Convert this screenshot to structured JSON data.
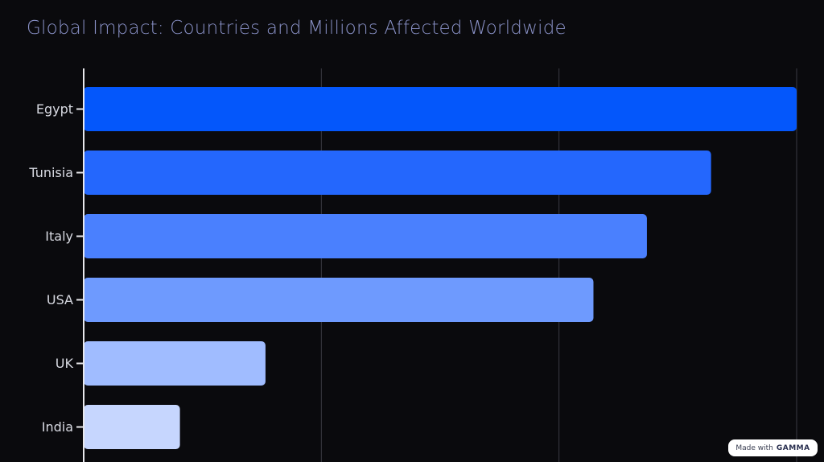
{
  "title": "Global Impact: Countries and Millions Affected Worldwide",
  "badge": {
    "prefix": "Made with",
    "brand": "GAMMA"
  },
  "colors": {
    "background": "#0a0a0d",
    "title": "#8a92c8",
    "axis": "#e8e8ec",
    "grid": "#3a3a44",
    "bars": [
      "#0457fb",
      "#2467fd",
      "#4a80fe",
      "#6e9afe",
      "#a0bcff",
      "#c6d6fe"
    ]
  },
  "chart_data": {
    "type": "bar",
    "orientation": "horizontal",
    "title": "Global Impact: Countries and Millions Affected Worldwide",
    "categories": [
      "Egypt",
      "Tunisia",
      "Italy",
      "USA",
      "UK",
      "India"
    ],
    "values": [
      100,
      88,
      79,
      71.5,
      25.5,
      13.5
    ],
    "xlim": [
      0,
      100
    ],
    "xlabel": "",
    "ylabel": "",
    "grid": true,
    "tick_labels_visible": false
  }
}
